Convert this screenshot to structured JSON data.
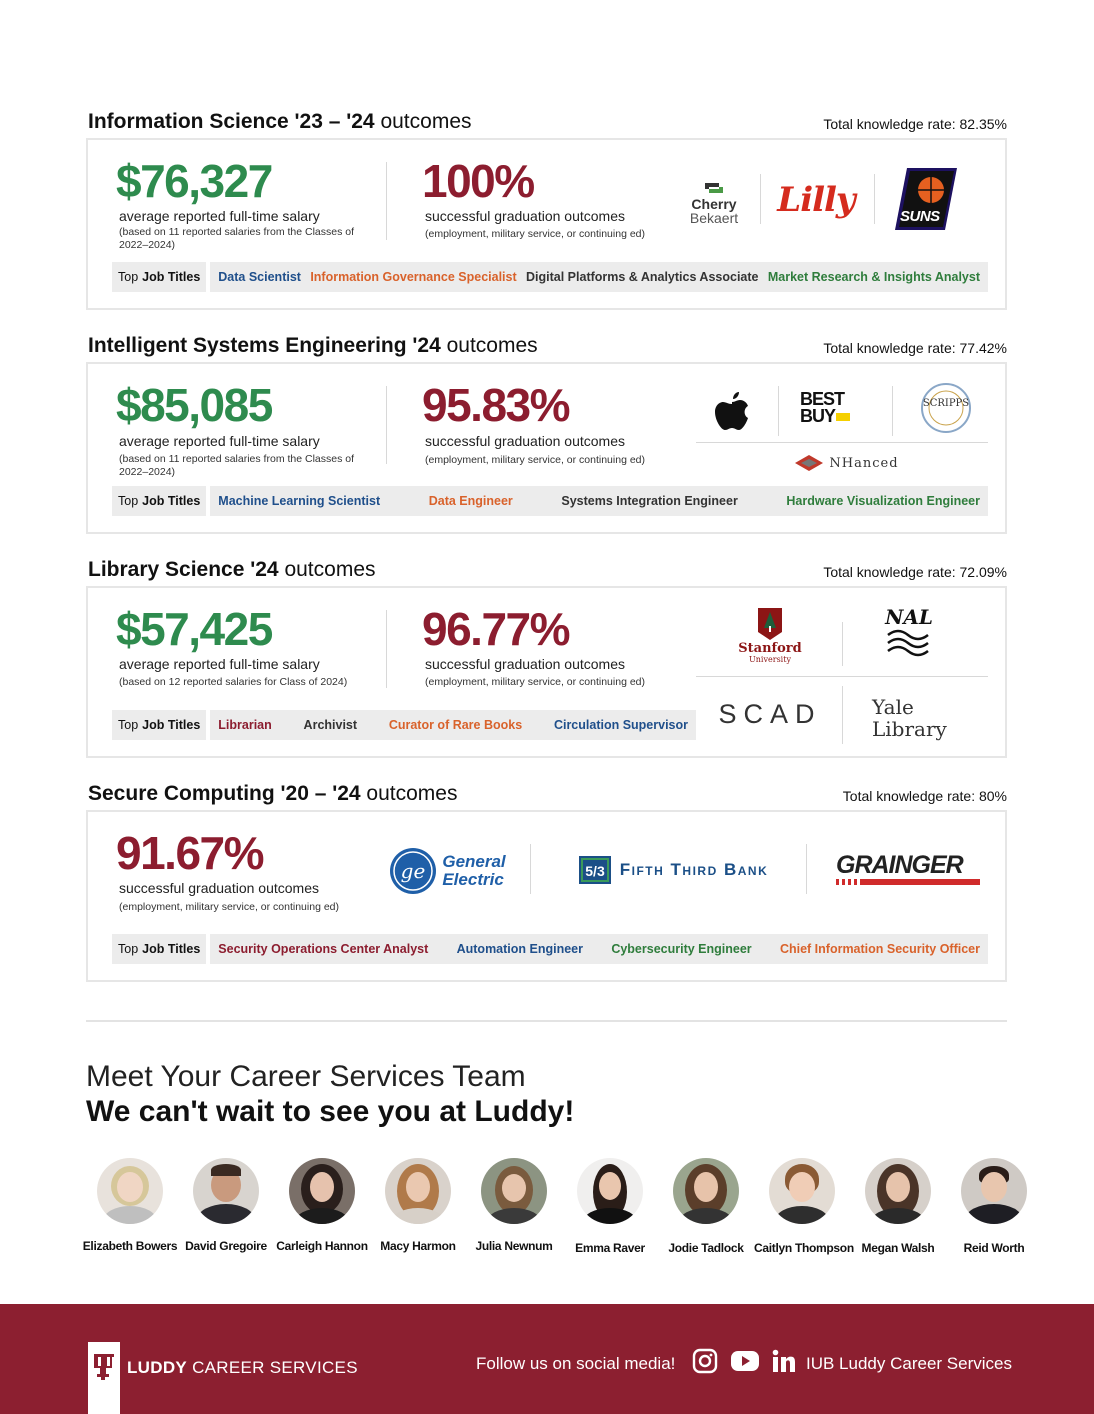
{
  "sections": [
    {
      "title_bold": "Information Science '23 – '24",
      "title_rest": "outcomes",
      "rate": "Total knowledge rate: 82.35%",
      "salary": "$76,327",
      "salary_label": "average reported full-time salary",
      "salary_note": "(based on 11 reported salaries from the Classes of 2022–2024)",
      "grad": "100%",
      "grad_label": "successful graduation outcomes",
      "grad_note": "(employment, military service, or continuing ed)",
      "titles_label_a": "Top",
      "titles_label_b": "Job Titles",
      "titles": [
        "Data Scientist",
        "Information Governance Specialist",
        "Digital Platforms & Analytics Associate",
        "Market Research & Insights Analyst"
      ],
      "logos": [
        "Cherry",
        "Bekaert",
        "Lilly",
        "SUNS"
      ]
    },
    {
      "title_bold": "Intelligent Systems Engineering '24",
      "title_rest": "outcomes",
      "rate": "Total knowledge rate: 77.42%",
      "salary": "$85,085",
      "salary_label": "average reported full-time salary",
      "salary_note": "(based on 11 reported salaries from the Classes of 2022–2024)",
      "grad": "95.83%",
      "grad_label": "successful graduation outcomes",
      "grad_note": "(employment, military service, or continuing ed)",
      "titles_label_a": "Top",
      "titles_label_b": "Job Titles",
      "titles": [
        "Machine Learning Scientist",
        "Data Engineer",
        "Systems Integration Engineer",
        "Hardware Visualization Engineer"
      ],
      "logos": [
        "BEST",
        "BUY",
        "SCRIPPS",
        "NHanced"
      ]
    },
    {
      "title_bold": "Library Science '24",
      "title_rest": "outcomes",
      "rate": "Total knowledge rate: 72.09%",
      "salary": "$57,425",
      "salary_label": "average reported full-time salary",
      "salary_note": "(based on 12 reported salaries for Class of 2024)",
      "grad": "96.77%",
      "grad_label": "successful graduation outcomes",
      "grad_note": "(employment, military service, or continuing ed)",
      "titles_label_a": "Top",
      "titles_label_b": "Job Titles",
      "titles": [
        "Librarian",
        "Archivist",
        "Curator of Rare Books",
        "Circulation Supervisor"
      ],
      "logos": [
        "Stanford",
        "University",
        "NAL",
        "SCAD",
        "Yale",
        "Library"
      ]
    },
    {
      "title_bold": "Secure Computing '20 – '24",
      "title_rest": "outcomes",
      "rate": "Total knowledge rate: 80%",
      "grad": "91.67%",
      "grad_label": "successful graduation outcomes",
      "grad_note": "(employment, military service, or continuing ed)",
      "titles_label_a": "Top",
      "titles_label_b": "Job Titles",
      "titles": [
        "Security Operations Center Analyst",
        "Automation Engineer",
        "Cybersecurity Engineer",
        "Chief Information Security Officer"
      ],
      "logos": [
        "General",
        "Electric",
        "Fifth Third Bank",
        "GRAINGER"
      ]
    }
  ],
  "team": {
    "heading": "Meet Your Career Services Team",
    "subheading": "We can't wait to see you at Luddy!",
    "members": [
      "Elizabeth Bowers",
      "David Gregoire",
      "Carleigh Hannon",
      "Macy Harmon",
      "Julia Newnum",
      "Emma Raver",
      "Jodie Tadlock",
      "Caitlyn Thompson",
      "Megan Walsh",
      "Reid Worth"
    ]
  },
  "footer": {
    "brand_bold": "LUDDY",
    "brand_rest": "CAREER SERVICES",
    "follow": "Follow us on social media!",
    "handle": "IUB Luddy Career Services"
  },
  "colors": {
    "green": "#2e8b4e",
    "maroon": "#8c1d2f",
    "footer": "#8c1f30"
  }
}
